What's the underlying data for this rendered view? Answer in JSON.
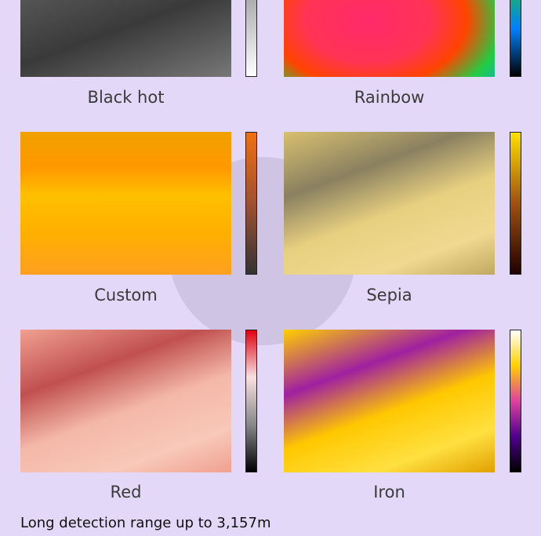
{
  "palettes": [
    {
      "label": "Black hot"
    },
    {
      "label": "Rainbow"
    },
    {
      "label": "Custom"
    },
    {
      "label": "Sepia"
    },
    {
      "label": "Red"
    },
    {
      "label": "Iron"
    }
  ],
  "footer": "Long detection range up to 3,157m"
}
